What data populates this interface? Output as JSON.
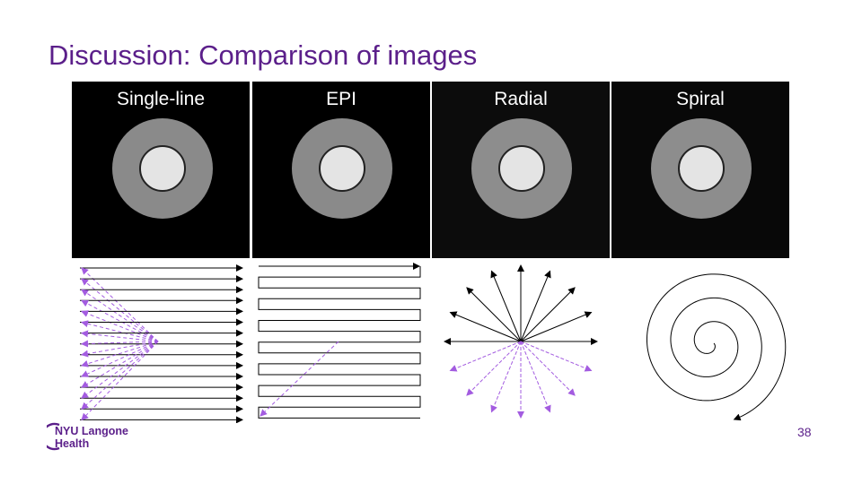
{
  "slide": {
    "title": "Discussion: Comparison of images",
    "page_number": "38"
  },
  "panels": [
    {
      "label": "Single-line"
    },
    {
      "label": "EPI"
    },
    {
      "label": "Radial"
    },
    {
      "label": "Spiral"
    }
  ],
  "logo": {
    "line1": "NYU Langone",
    "line2": "Health",
    "color": "#5b1f8a"
  },
  "colors": {
    "accent": "#5b1f8a",
    "dashed": "#a35ce0",
    "arrow": "#000000",
    "phantom_outer": "#8a8a8a",
    "phantom_inner": "#e6e6e6"
  }
}
